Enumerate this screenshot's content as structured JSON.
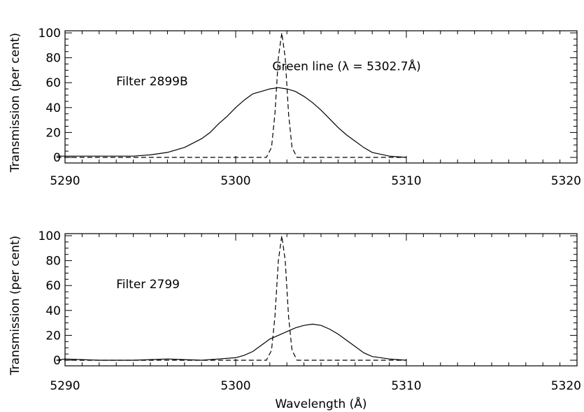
{
  "chart_data": [
    {
      "type": "line",
      "ylabel": "Transmission (per cent)",
      "xlabel": "",
      "xlim": [
        5290,
        5320
      ],
      "ylim": [
        0,
        100
      ],
      "xticks": [
        5290,
        5300,
        5310,
        5320
      ],
      "yticks": [
        0,
        20,
        40,
        60,
        80,
        100
      ],
      "grid": false,
      "annotations": [
        {
          "text": "Filter 2899B",
          "x": 5293.0,
          "y": 58
        },
        {
          "text": "Green line (λ = 5302.7Å)",
          "x": 5306.5,
          "y": 70
        }
      ],
      "series": [
        {
          "style": "solid",
          "x": [
            5289.5,
            5290,
            5291,
            5292,
            5293,
            5294,
            5295,
            5296,
            5297,
            5298,
            5298.5,
            5299,
            5299.5,
            5300,
            5300.5,
            5301,
            5301.5,
            5302,
            5302.5,
            5303,
            5303.5,
            5304,
            5304.5,
            5305,
            5305.5,
            5306,
            5306.5,
            5307,
            5307.5,
            5308,
            5309,
            5310
          ],
          "values": [
            1,
            1,
            1,
            1,
            1,
            1,
            2,
            4,
            8,
            15,
            20,
            27,
            33,
            40,
            46,
            51,
            53,
            55,
            56,
            55,
            53,
            49,
            44,
            38,
            31,
            24,
            18,
            13,
            8,
            4,
            1,
            0
          ]
        },
        {
          "style": "dashed",
          "x": [
            5289.5,
            5301.8,
            5302.1,
            5302.3,
            5302.5,
            5302.7,
            5302.9,
            5303.1,
            5303.3,
            5303.6,
            5310
          ],
          "values": [
            0,
            0,
            8,
            35,
            80,
            100,
            80,
            35,
            8,
            0,
            0
          ]
        }
      ]
    },
    {
      "type": "line",
      "ylabel": "Transmission (per cent)",
      "xlabel": "Wavelength (Å)",
      "xlim": [
        5290,
        5320
      ],
      "ylim": [
        0,
        100
      ],
      "xticks": [
        5290,
        5300,
        5310,
        5320
      ],
      "yticks": [
        0,
        20,
        40,
        60,
        80,
        100
      ],
      "grid": false,
      "annotations": [
        {
          "text": "Filter 2799",
          "x": 5293.0,
          "y": 58
        }
      ],
      "series": [
        {
          "style": "solid",
          "x": [
            5289.5,
            5290,
            5292,
            5294,
            5296,
            5298,
            5299,
            5300,
            5300.5,
            5301,
            5301.5,
            5302,
            5302.5,
            5303,
            5303.5,
            5304,
            5304.5,
            5305,
            5305.5,
            5306,
            5306.5,
            5307,
            5307.5,
            5308,
            5309,
            5310
          ],
          "values": [
            0,
            1,
            0,
            0,
            1,
            0,
            1,
            2,
            4,
            7,
            12,
            17,
            20,
            23,
            26,
            28,
            29,
            28,
            25,
            21,
            16,
            11,
            6,
            3,
            1,
            0
          ]
        },
        {
          "style": "dashed",
          "x": [
            5289.5,
            5301.8,
            5302.1,
            5302.3,
            5302.5,
            5302.7,
            5302.9,
            5303.1,
            5303.3,
            5303.6,
            5310
          ],
          "values": [
            0,
            0,
            8,
            35,
            80,
            100,
            80,
            35,
            8,
            0,
            0
          ]
        }
      ]
    }
  ]
}
